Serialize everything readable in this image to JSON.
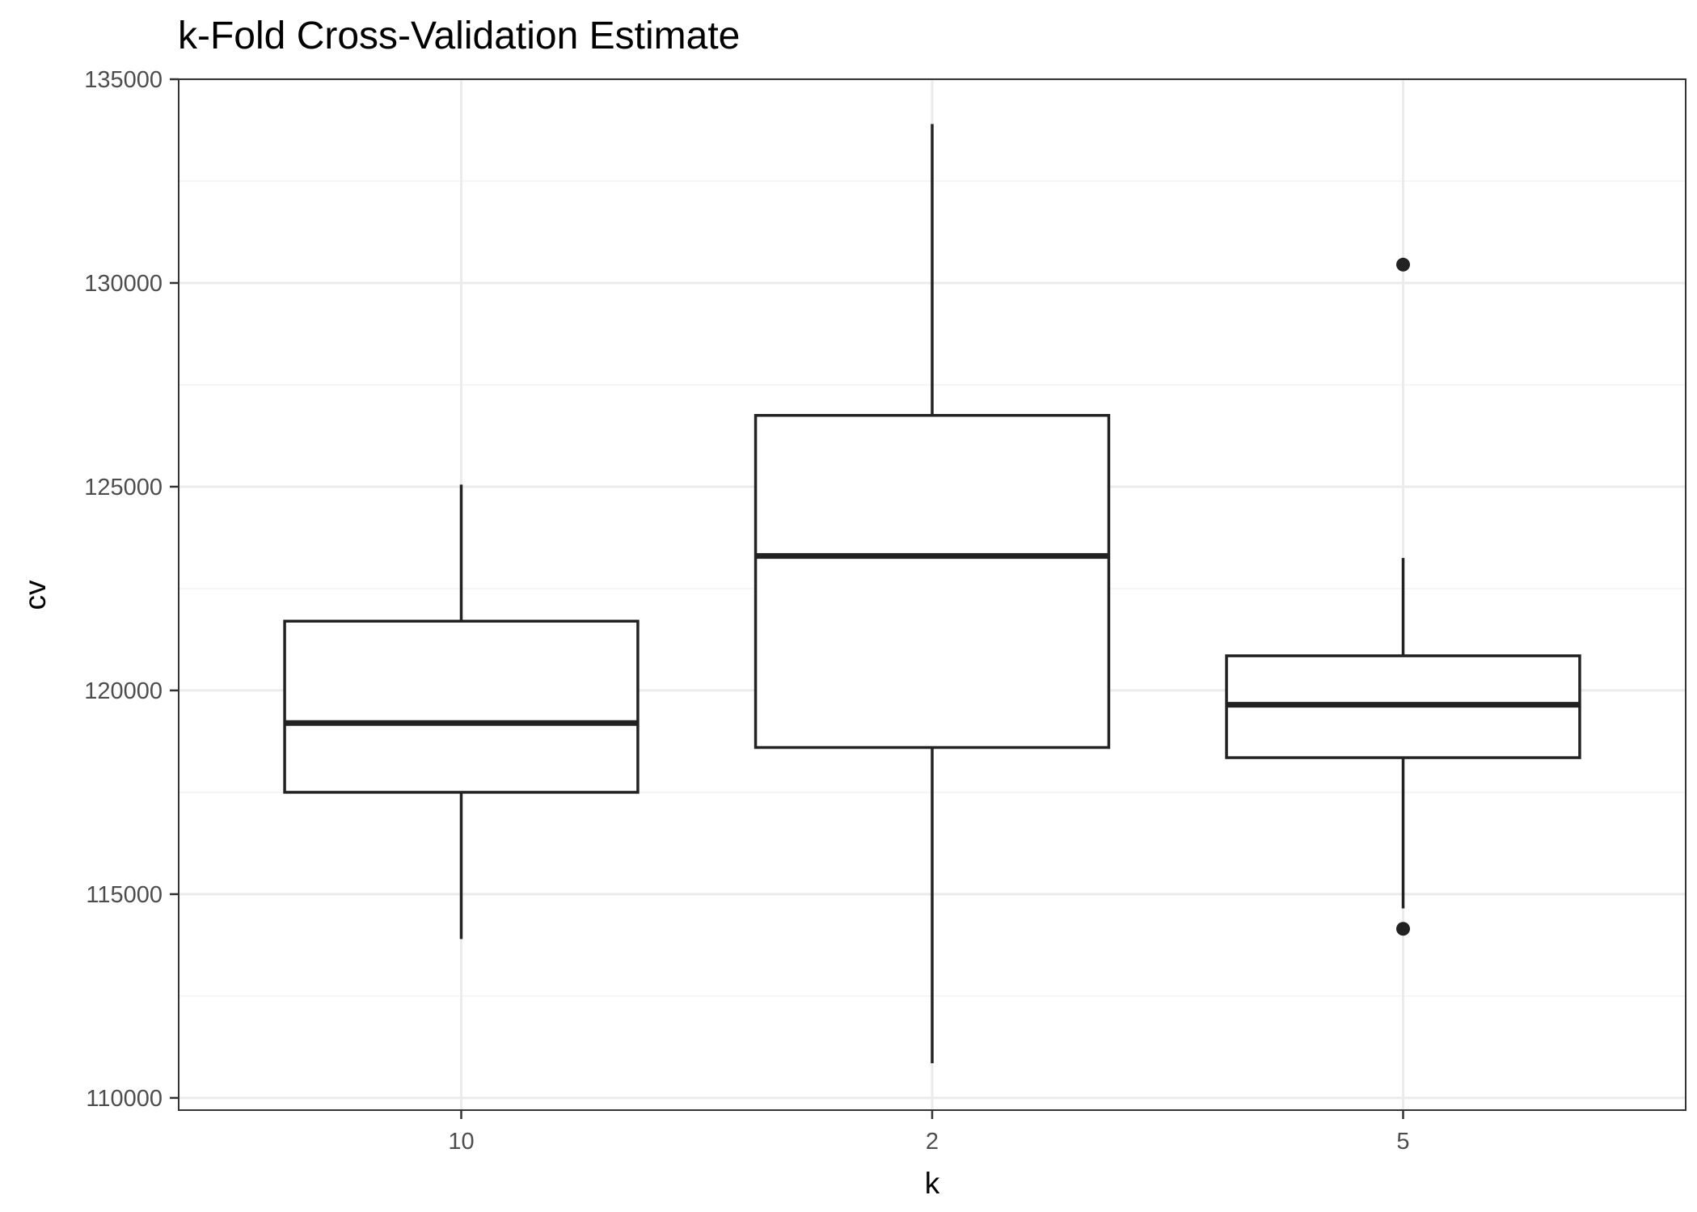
{
  "chart_data": {
    "type": "boxplot",
    "title": "k-Fold Cross-Validation Estimate",
    "xlabel": "k",
    "ylabel": "cv",
    "categories": [
      "10",
      "2",
      "5"
    ],
    "ylim": [
      109700,
      135000
    ],
    "y_ticks": [
      110000,
      115000,
      120000,
      125000,
      130000,
      135000
    ],
    "grid": true,
    "boxes": [
      {
        "category": "10",
        "whisker_low": 113900,
        "q1": 117500,
        "median": 119200,
        "q3": 121700,
        "whisker_high": 125050,
        "outliers": []
      },
      {
        "category": "2",
        "whisker_low": 110850,
        "q1": 118600,
        "median": 123300,
        "q3": 126750,
        "whisker_high": 133900,
        "outliers": []
      },
      {
        "category": "5",
        "whisker_low": 114650,
        "q1": 118350,
        "median": 119650,
        "q3": 120850,
        "whisker_high": 123250,
        "outliers": [
          130450,
          114150
        ]
      }
    ],
    "colors": {
      "box_stroke": "#222222",
      "box_fill": "#ffffff",
      "grid_major": "#ebebeb",
      "grid_minor": "#f2f2f2",
      "panel_border": "#333333"
    }
  }
}
